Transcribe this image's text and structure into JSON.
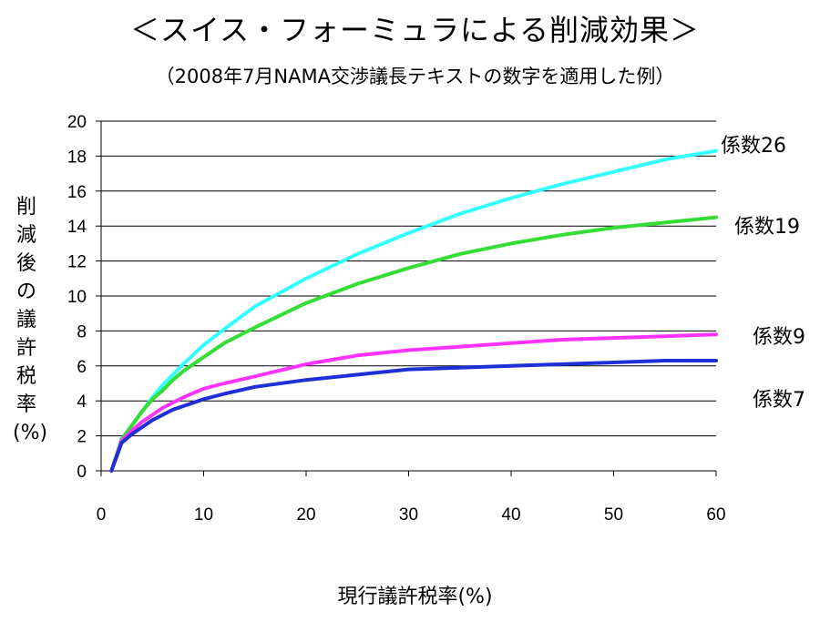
{
  "chart_data": {
    "type": "line",
    "title": "＜スイス・フォーミュラによる削減効果＞",
    "subtitle": "（2008年7月NAMA交渉議長テキストの数字を適用した例）",
    "xlabel": "現行議許税率(%)",
    "ylabel": "削減後の議許税率(%)",
    "xlim": [
      0,
      60
    ],
    "ylim": [
      0,
      20
    ],
    "xticks": [
      0,
      10,
      20,
      30,
      40,
      50,
      60
    ],
    "yticks": [
      0,
      2,
      4,
      6,
      8,
      10,
      12,
      14,
      16,
      18,
      20
    ],
    "grid": "horizontal",
    "x": [
      1,
      2,
      3,
      4,
      5,
      6,
      7,
      8,
      10,
      12,
      15,
      20,
      25,
      30,
      35,
      40,
      45,
      50,
      55,
      60
    ],
    "series": [
      {
        "name": "係数26",
        "color": "#33FFFF",
        "values": [
          0,
          1.8,
          2.6,
          3.4,
          4.2,
          4.9,
          5.5,
          6.1,
          7.2,
          8.1,
          9.4,
          11.0,
          12.4,
          13.6,
          14.7,
          15.6,
          16.4,
          17.1,
          17.8,
          18.3
        ]
      },
      {
        "name": "係数19",
        "color": "#33DD33",
        "values": [
          0,
          1.8,
          2.6,
          3.4,
          4.1,
          4.6,
          5.2,
          5.7,
          6.5,
          7.3,
          8.2,
          9.6,
          10.7,
          11.6,
          12.4,
          13.0,
          13.5,
          13.9,
          14.2,
          14.5
        ]
      },
      {
        "name": "係数9",
        "color": "#FF33FF",
        "values": [
          0,
          1.7,
          2.3,
          2.8,
          3.2,
          3.6,
          3.9,
          4.2,
          4.7,
          5.0,
          5.4,
          6.1,
          6.6,
          6.9,
          7.1,
          7.3,
          7.5,
          7.6,
          7.7,
          7.8
        ]
      },
      {
        "name": "係数7",
        "color": "#1F2FD6",
        "values": [
          0,
          1.6,
          2.1,
          2.5,
          2.9,
          3.2,
          3.5,
          3.7,
          4.1,
          4.4,
          4.8,
          5.2,
          5.5,
          5.8,
          5.9,
          6.0,
          6.1,
          6.2,
          6.3,
          6.3
        ]
      }
    ]
  }
}
